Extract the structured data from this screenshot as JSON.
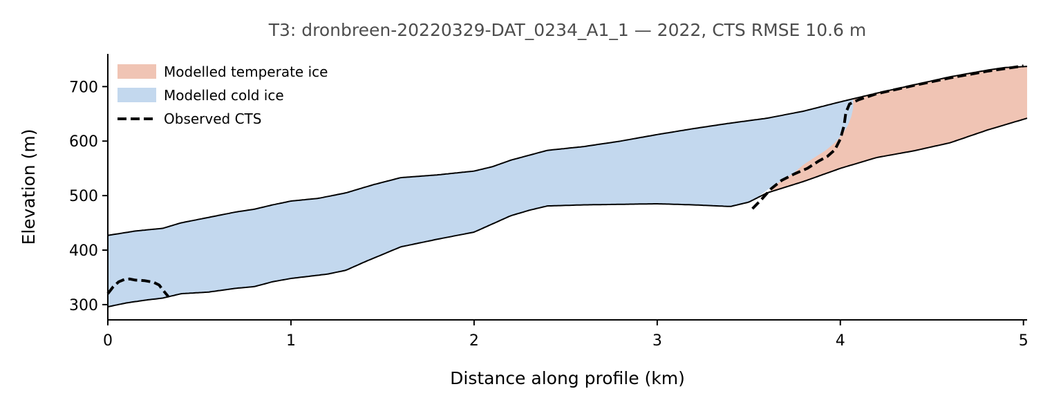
{
  "chart_data": {
    "type": "area",
    "title": "T3: dronbreen-20220329-DAT_0234_A1_1 — 2022, CTS RMSE 10.6 m",
    "xlabel": "Distance along profile (km)",
    "ylabel": "Elevation (m)",
    "xlim": [
      0,
      5.02
    ],
    "ylim": [
      272,
      760
    ],
    "xticks": [
      0,
      1,
      2,
      3,
      4,
      5
    ],
    "yticks": [
      300,
      400,
      500,
      600,
      700
    ],
    "grid": false,
    "legend": {
      "placement": "top-left",
      "entries": [
        {
          "label": "Modelled temperate ice",
          "kind": "patch",
          "color": "#f0c4b4"
        },
        {
          "label": "Modelled cold ice",
          "kind": "patch",
          "color": "#c3d8ee"
        },
        {
          "label": "Observed CTS",
          "kind": "dashed-line",
          "color": "#000000"
        }
      ]
    },
    "surface": {
      "x": [
        0,
        0.15,
        0.3,
        0.4,
        0.55,
        0.7,
        0.8,
        0.9,
        1.0,
        1.15,
        1.3,
        1.45,
        1.6,
        1.8,
        2.0,
        2.1,
        2.2,
        2.4,
        2.6,
        2.8,
        3.0,
        3.2,
        3.4,
        3.6,
        3.8,
        4.0,
        4.2,
        4.4,
        4.6,
        4.8,
        4.9,
        5.02
      ],
      "y": [
        427,
        435,
        440,
        450,
        460,
        470,
        475,
        483,
        490,
        495,
        505,
        520,
        533,
        538,
        545,
        553,
        565,
        583,
        590,
        600,
        612,
        623,
        633,
        642,
        655,
        672,
        688,
        703,
        718,
        730,
        735,
        737
      ]
    },
    "bed": {
      "x": [
        0,
        0.1,
        0.2,
        0.3,
        0.4,
        0.55,
        0.7,
        0.8,
        0.9,
        1.0,
        1.1,
        1.2,
        1.3,
        1.4,
        1.5,
        1.6,
        1.8,
        2.0,
        2.1,
        2.2,
        2.3,
        2.4,
        2.6,
        2.8,
        3.0,
        3.2,
        3.4,
        3.5,
        3.6,
        3.8,
        4.0,
        4.2,
        4.4,
        4.6,
        4.8,
        5.02
      ],
      "y": [
        296,
        303,
        308,
        312,
        320,
        323,
        330,
        333,
        342,
        348,
        352,
        356,
        363,
        378,
        392,
        406,
        420,
        433,
        448,
        463,
        473,
        481,
        483,
        484,
        485,
        483,
        480,
        488,
        505,
        526,
        550,
        570,
        582,
        597,
        620,
        642
      ]
    },
    "series": [
      {
        "name": "Modelled cold ice",
        "color": "#c3d8ee",
        "x_start": 0,
        "x_end": 4.07,
        "lower": {
          "x": [
            3.56,
            3.62,
            3.67,
            3.74,
            3.8,
            3.86,
            3.92,
            3.97,
            4.01,
            4.04,
            4.06,
            4.07
          ],
          "y": [
            500,
            515,
            525,
            540,
            557,
            570,
            583,
            597,
            612,
            628,
            645,
            660
          ]
        }
      },
      {
        "name": "Modelled temperate ice",
        "color": "#f0c4b4",
        "x_start": 3.62,
        "x_end": 5.02
      }
    ],
    "observed_cts": [
      {
        "x": [
          0,
          0.03,
          0.06,
          0.09,
          0.12,
          0.15,
          0.2,
          0.25,
          0.28,
          0.3,
          0.33
        ],
        "y": [
          320,
          333,
          342,
          346,
          347,
          345,
          344,
          341,
          336,
          327,
          315
        ]
      },
      {
        "x": [
          3.52,
          3.57,
          3.62,
          3.68,
          3.75,
          3.82,
          3.88,
          3.93,
          3.97,
          4.0,
          4.02,
          4.03,
          4.05,
          4.1,
          4.2,
          4.4,
          4.6,
          4.8,
          5.0
        ],
        "y": [
          476,
          493,
          512,
          528,
          540,
          550,
          563,
          572,
          584,
          604,
          628,
          652,
          668,
          676,
          687,
          702,
          716,
          728,
          738
        ]
      }
    ]
  }
}
